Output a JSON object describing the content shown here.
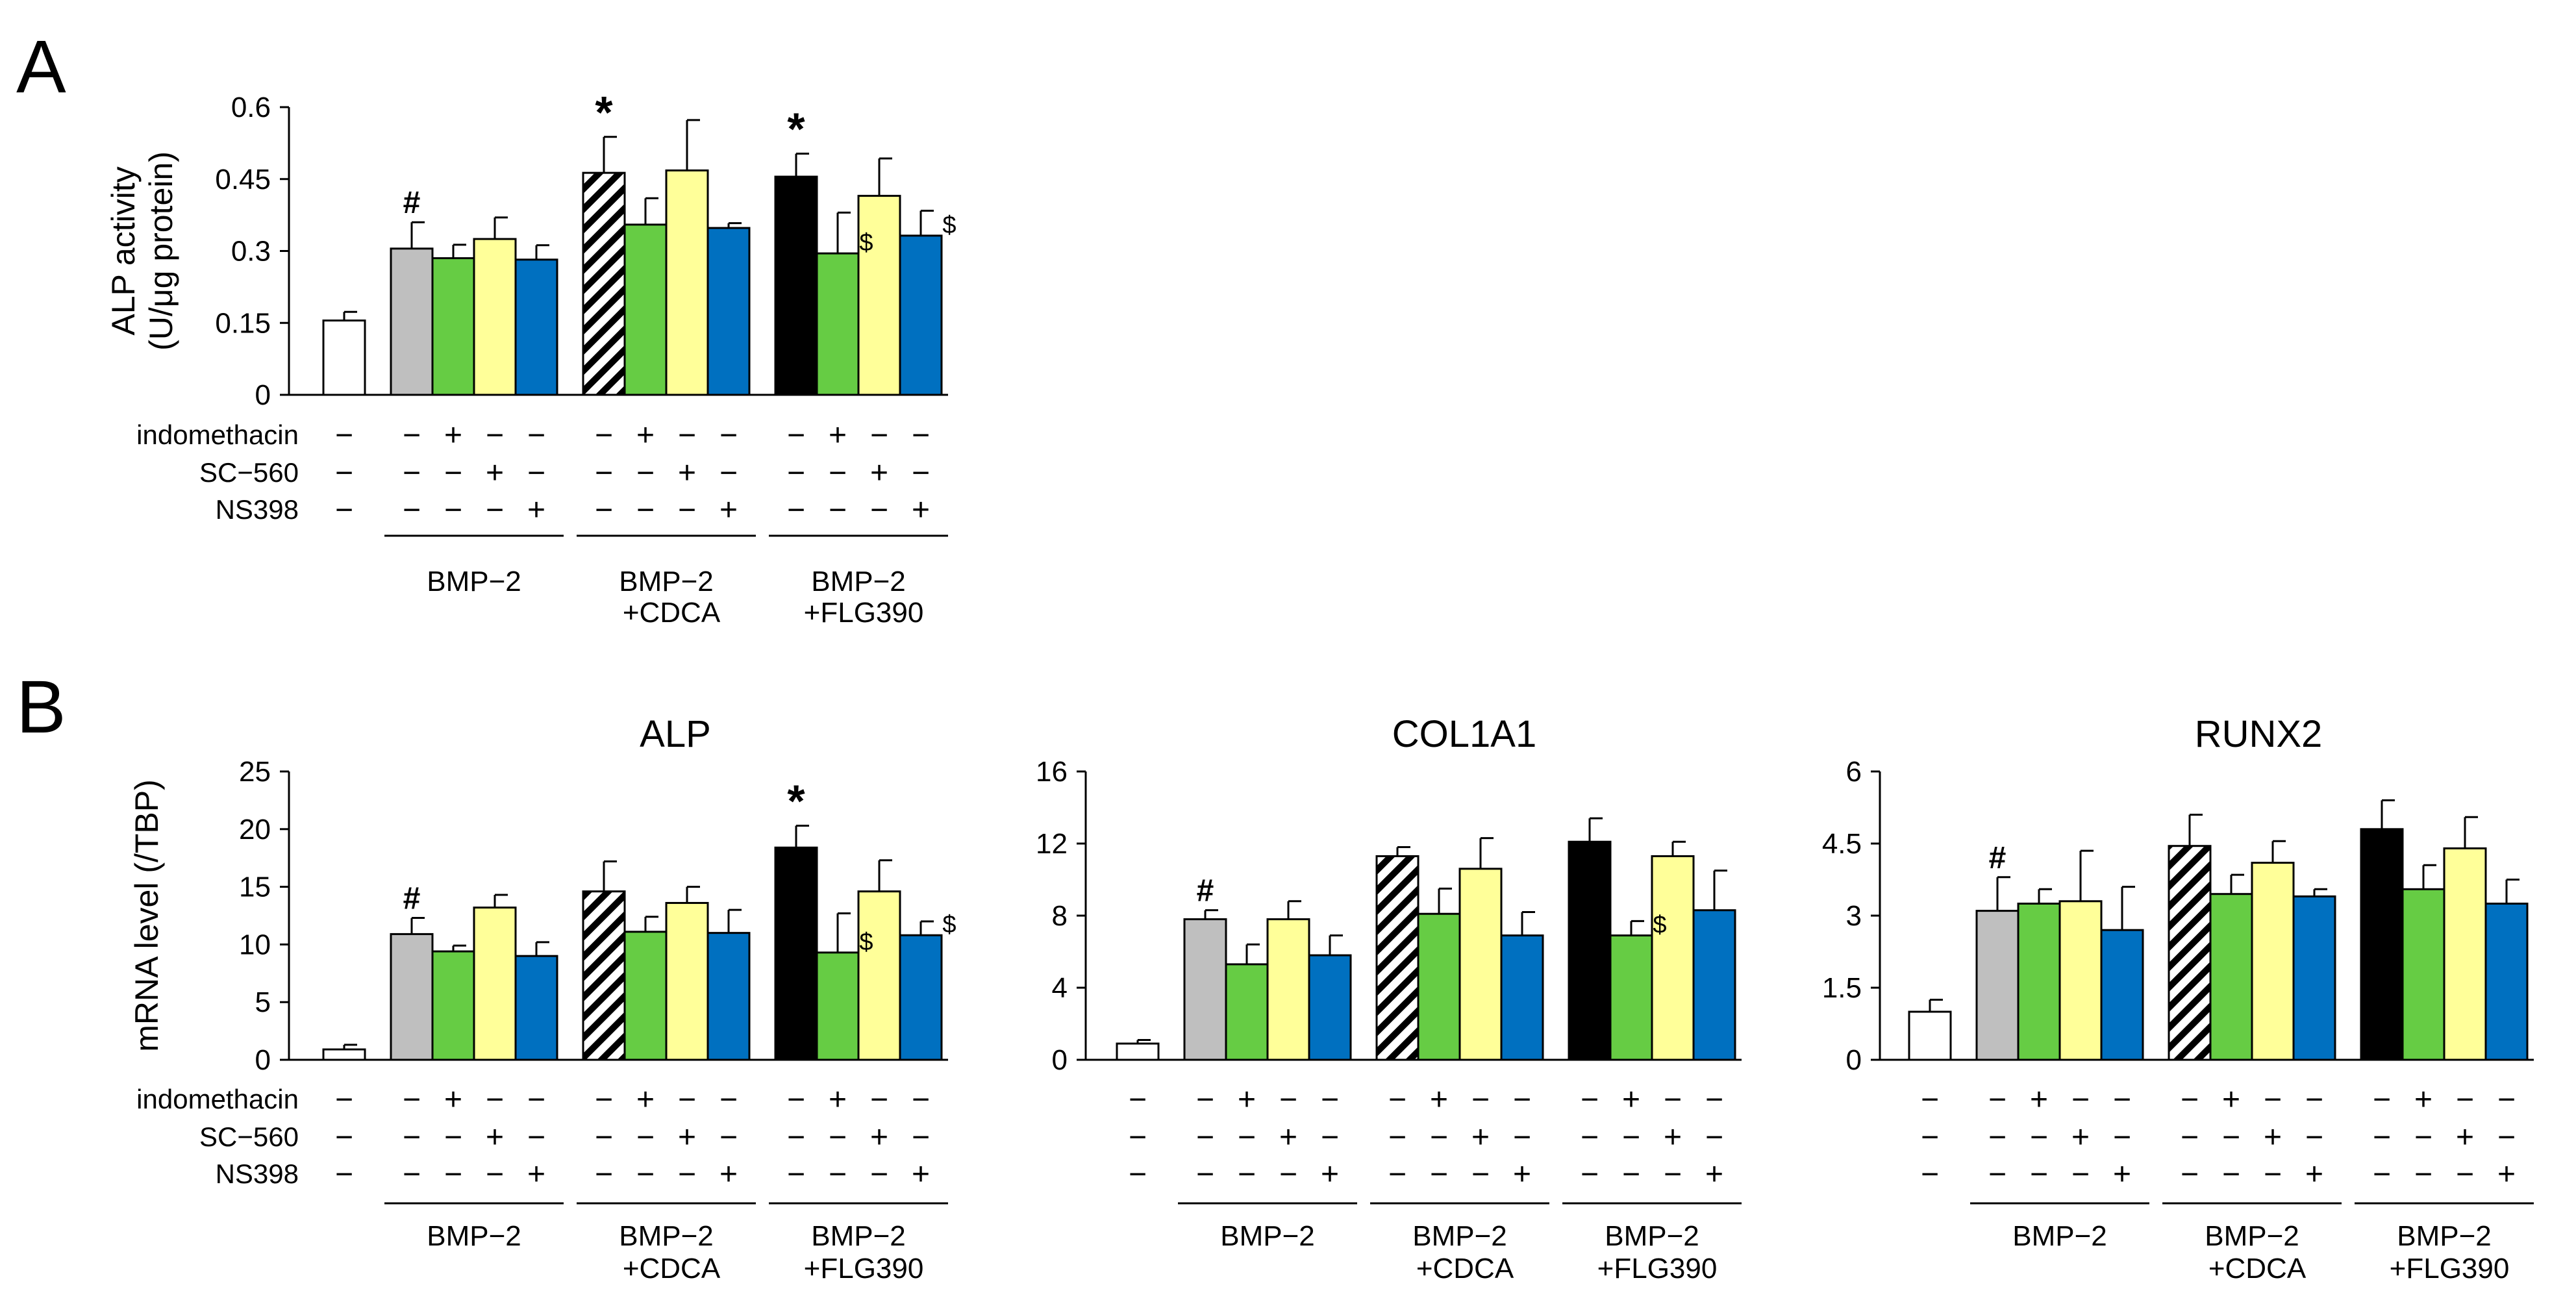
{
  "panel_labels": {
    "a": "A",
    "b": "B"
  },
  "group_labels": [
    "BMP−2",
    "BMP−2\n+CDCA",
    "BMP−2\n+FLG390"
  ],
  "row_labels": [
    "indomethacin",
    "SC−560",
    "NS398"
  ],
  "treatment_signs": [
    [
      "−",
      "−",
      "+",
      "−",
      "−",
      "−",
      "+",
      "−",
      "−",
      "−",
      "+",
      "−",
      "−"
    ],
    [
      "−",
      "−",
      "−",
      "+",
      "−",
      "−",
      "−",
      "+",
      "−",
      "−",
      "−",
      "+",
      "−"
    ],
    [
      "−",
      "−",
      "−",
      "−",
      "+",
      "−",
      "−",
      "−",
      "+",
      "−",
      "−",
      "−",
      "+"
    ]
  ],
  "colors": {
    "white": "#ffffff",
    "gray": "#bfbfbf",
    "green": "#66cc44",
    "yellow": "#ffff99",
    "blue": "#0070c0",
    "black": "#000000",
    "hatch": "hatch"
  },
  "bar_fills": [
    "white",
    "gray",
    "green",
    "yellow",
    "blue",
    "hatch",
    "green",
    "yellow",
    "blue",
    "black",
    "green",
    "yellow",
    "blue"
  ],
  "chart_data": [
    {
      "type": "bar",
      "panel": "A",
      "title": "",
      "ylabel": [
        "ALP activity",
        "(U/μg protein)"
      ],
      "ylim": [
        0,
        0.6
      ],
      "yticks": [
        "0",
        "0.15",
        "0.3",
        "0.45",
        "0.6"
      ],
      "ytick_values": [
        0,
        0.15,
        0.3,
        0.45,
        0.6
      ],
      "values": [
        0.155,
        0.305,
        0.285,
        0.325,
        0.282,
        0.463,
        0.355,
        0.468,
        0.348,
        0.455,
        0.295,
        0.415,
        0.332
      ],
      "errors": [
        0.018,
        0.055,
        0.028,
        0.045,
        0.03,
        0.075,
        0.055,
        0.105,
        0.01,
        0.048,
        0.085,
        0.078,
        0.052
      ],
      "annotations": [
        {
          "bar": 1,
          "text": "#"
        },
        {
          "bar": 5,
          "text": "*"
        },
        {
          "bar": 9,
          "text": "*"
        },
        {
          "bar": 10,
          "text": "$"
        },
        {
          "bar": 12,
          "text": "$"
        }
      ],
      "show_row_labels": true
    },
    {
      "type": "bar",
      "panel": "B",
      "title": "ALP",
      "ylabel": [
        "mRNA level (/TBP)"
      ],
      "ylim": [
        0,
        25
      ],
      "yticks": [
        "0",
        "5",
        "10",
        "15",
        "20",
        "25"
      ],
      "ytick_values": [
        0,
        5,
        10,
        15,
        20,
        25
      ],
      "values": [
        0.9,
        10.9,
        9.4,
        13.2,
        9.0,
        14.6,
        11.1,
        13.6,
        11.0,
        18.4,
        9.3,
        14.6,
        10.8
      ],
      "errors": [
        0.4,
        1.4,
        0.5,
        1.1,
        1.2,
        2.6,
        1.3,
        1.4,
        2.0,
        1.9,
        3.4,
        2.7,
        1.2
      ],
      "annotations": [
        {
          "bar": 1,
          "text": "#"
        },
        {
          "bar": 9,
          "text": "*"
        },
        {
          "bar": 10,
          "text": "$"
        },
        {
          "bar": 12,
          "text": "$"
        }
      ],
      "show_row_labels": true
    },
    {
      "type": "bar",
      "panel": "B",
      "title": "COL1A1",
      "ylabel": [],
      "ylim": [
        0,
        16
      ],
      "yticks": [
        "0",
        "4",
        "8",
        "12",
        "16"
      ],
      "ytick_values": [
        0,
        4,
        8,
        12,
        16
      ],
      "values": [
        0.9,
        7.8,
        5.3,
        7.8,
        5.8,
        11.3,
        8.1,
        10.6,
        6.9,
        12.1,
        6.9,
        11.3,
        8.3
      ],
      "errors": [
        0.2,
        0.5,
        1.1,
        1.0,
        1.1,
        0.5,
        1.4,
        1.7,
        1.3,
        1.3,
        0.8,
        0.8,
        2.2
      ],
      "annotations": [
        {
          "bar": 1,
          "text": "#"
        },
        {
          "bar": 10,
          "text": "$"
        }
      ],
      "show_row_labels": false
    },
    {
      "type": "bar",
      "panel": "B",
      "title": "RUNX2",
      "ylabel": [],
      "ylim": [
        0,
        6
      ],
      "yticks": [
        "0",
        "1.5",
        "3",
        "4.5",
        "6"
      ],
      "ytick_values": [
        0,
        1.5,
        3,
        4.5,
        6
      ],
      "values": [
        1.0,
        3.1,
        3.25,
        3.3,
        2.7,
        4.45,
        3.45,
        4.1,
        3.4,
        4.8,
        3.55,
        4.4,
        3.25
      ],
      "errors": [
        0.25,
        0.7,
        0.3,
        1.05,
        0.9,
        0.65,
        0.4,
        0.45,
        0.15,
        0.6,
        0.5,
        0.65,
        0.5
      ],
      "annotations": [
        {
          "bar": 1,
          "text": "#"
        }
      ],
      "show_row_labels": false
    }
  ]
}
